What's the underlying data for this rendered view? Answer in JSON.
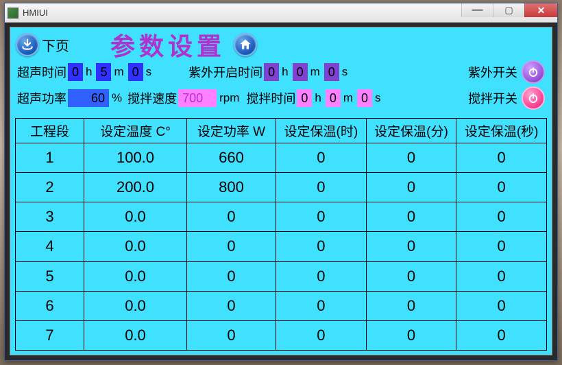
{
  "window": {
    "title": "HMIUI"
  },
  "header": {
    "next_label": "下页",
    "page_title": "参数设置"
  },
  "row1": {
    "us_time_label": "超声时间",
    "us_h": "0",
    "us_m": "5",
    "us_s": "0",
    "uv_start_label": "紫外开启时间",
    "uv_h": "0",
    "uv_m": "0",
    "uv_s": "0",
    "uv_switch_label": "紫外开关"
  },
  "row2": {
    "us_power_label": "超声功率",
    "us_power": "60",
    "us_power_unit": "%",
    "stir_speed_label": "搅拌速度",
    "stir_speed": "700",
    "stir_speed_unit": "rpm",
    "stir_time_label": "搅拌时间",
    "stir_h": "0",
    "stir_m": "0",
    "stir_s": "0",
    "stir_switch_label": "搅拌开关"
  },
  "units": {
    "h": "h",
    "m": "m",
    "s": "s"
  },
  "table": {
    "headers": [
      "工程段",
      "设定温度 C°",
      "设定功率 W",
      "设定保温(时)",
      "设定保温(分)",
      "设定保温(秒)"
    ],
    "rows": [
      [
        "1",
        "100.0",
        "660",
        "0",
        "0",
        "0"
      ],
      [
        "2",
        "200.0",
        "800",
        "0",
        "0",
        "0"
      ],
      [
        "3",
        "0.0",
        "0",
        "0",
        "0",
        "0"
      ],
      [
        "4",
        "0.0",
        "0",
        "0",
        "0",
        "0"
      ],
      [
        "5",
        "0.0",
        "0",
        "0",
        "0",
        "0"
      ],
      [
        "6",
        "0.0",
        "0",
        "0",
        "0",
        "0"
      ],
      [
        "7",
        "0.0",
        "0",
        "0",
        "0",
        "0"
      ]
    ]
  },
  "colors": {
    "panel_bg": "#40e0ff",
    "title_color": "#b030d0",
    "blue_field": "#3030ff",
    "blue_wide": "#3060ff",
    "purple_field": "#8040d0",
    "pink_field": "#ff80ff"
  }
}
